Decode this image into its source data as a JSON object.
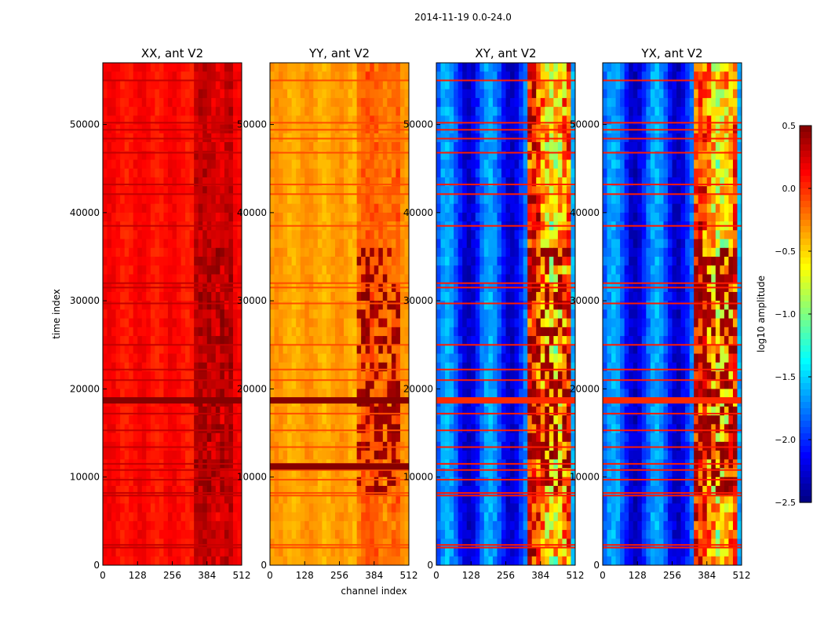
{
  "figure_title": "2014-11-19 0.0-24.0",
  "colorbar": {
    "label": "log10 amplitude",
    "min": -2.5,
    "max": 0.5,
    "ticks": [
      0.5,
      0.0,
      -0.5,
      -1.0,
      -1.5,
      -2.0,
      -2.5
    ],
    "tick_labels": [
      "0.5",
      "0.0",
      "−0.5",
      "−1.0",
      "−1.5",
      "−2.0",
      "−2.5"
    ],
    "colormap": "jet"
  },
  "chart_data": [
    {
      "type": "heatmap",
      "title": "XX, ant V2",
      "xlabel": "",
      "ylabel": "time index",
      "xlim": [
        0,
        512
      ],
      "ylim": [
        0,
        57000
      ],
      "xticks": [
        0,
        128,
        256,
        384,
        512
      ],
      "xtick_labels": [
        "0",
        "128",
        "256",
        "384",
        "512"
      ],
      "yticks": [
        0,
        10000,
        20000,
        30000,
        40000,
        50000
      ],
      "ytick_labels": [
        "0",
        "10000",
        "20000",
        "30000",
        "40000",
        "50000"
      ],
      "background_value": 0.1,
      "rfi_band_channels": [
        330,
        475
      ],
      "saturated_rows": [
        18700
      ]
    },
    {
      "type": "heatmap",
      "title": "YY, ant V2",
      "xlabel": "channel index",
      "ylabel": "",
      "xlim": [
        0,
        512
      ],
      "ylim": [
        0,
        57000
      ],
      "xticks": [
        0,
        128,
        256,
        384,
        512
      ],
      "xtick_labels": [
        "0",
        "128",
        "256",
        "384",
        "512"
      ],
      "yticks": [
        0,
        10000,
        20000,
        30000,
        40000,
        50000
      ],
      "ytick_labels": [
        "0",
        "10000",
        "20000",
        "30000",
        "40000",
        "50000"
      ],
      "background_value": -0.35,
      "rfi_band_channels": [
        325,
        475
      ],
      "saturated_rows": [
        18700,
        11200
      ]
    },
    {
      "type": "heatmap",
      "title": "XY, ant V2",
      "xlabel": "",
      "ylabel": "",
      "xlim": [
        0,
        512
      ],
      "ylim": [
        0,
        57000
      ],
      "xticks": [
        0,
        128,
        256,
        384,
        512
      ],
      "xtick_labels": [
        "0",
        "128",
        "256",
        "384",
        "512"
      ],
      "yticks": [
        0,
        10000,
        20000,
        30000,
        40000,
        50000
      ],
      "ytick_labels": [
        "0",
        "10000",
        "20000",
        "30000",
        "40000",
        "50000"
      ],
      "background_value": -2.1,
      "rfi_band_channels": [
        330,
        490
      ],
      "saturated_rows": [
        18700
      ]
    },
    {
      "type": "heatmap",
      "title": "YX, ant V2",
      "xlabel": "",
      "ylabel": "",
      "xlim": [
        0,
        512
      ],
      "ylim": [
        0,
        57000
      ],
      "xticks": [
        0,
        128,
        256,
        384,
        512
      ],
      "xtick_labels": [
        "0",
        "128",
        "256",
        "384",
        "512"
      ],
      "yticks": [
        0,
        10000,
        20000,
        30000,
        40000,
        50000
      ],
      "ytick_labels": [
        "0",
        "10000",
        "20000",
        "30000",
        "40000",
        "50000"
      ],
      "background_value": -2.1,
      "rfi_band_channels": [
        330,
        490
      ],
      "saturated_rows": [
        18700
      ]
    }
  ]
}
